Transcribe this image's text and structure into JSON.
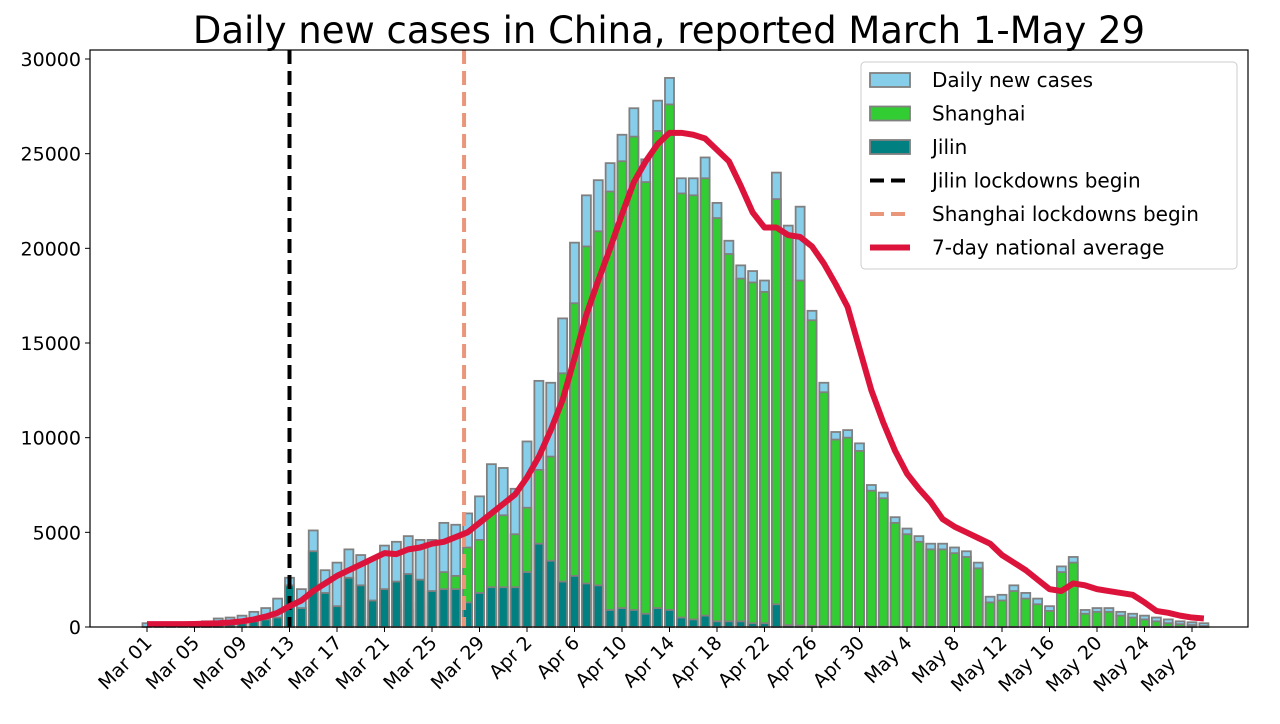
{
  "chart_data": {
    "type": "bar",
    "title": "Daily new cases in China, reported March 1-May 29",
    "xlabel": "",
    "ylabel": "",
    "ylim": [
      0,
      30000
    ],
    "yticks": [
      0,
      5000,
      10000,
      15000,
      20000,
      25000,
      30000
    ],
    "xtick_labels": [
      "Mar 01",
      "Mar 05",
      "Mar 09",
      "Mar 13",
      "Mar 17",
      "Mar 21",
      "Mar 25",
      "Mar 29",
      "Apr 2",
      "Apr 6",
      "Apr 10",
      "Apr 14",
      "Apr 18",
      "Apr 22",
      "Apr 26",
      "Apr 30",
      "May 4",
      "May 8",
      "May 12",
      "May 16",
      "May 20",
      "May 24",
      "May 28"
    ],
    "xtick_step_days": 4,
    "start_date": "Mar 01",
    "days": 90,
    "grid": false,
    "legend_position": "top-right",
    "series": [
      {
        "name": "Daily new cases",
        "kind": "bar",
        "color": "#87CEEB",
        "values": [
          200,
          200,
          200,
          200,
          250,
          300,
          450,
          500,
          600,
          800,
          1000,
          1500,
          2600,
          2000,
          5100,
          3000,
          3400,
          4100,
          3800,
          3600,
          4300,
          4500,
          4800,
          4600,
          4600,
          5500,
          5400,
          6000,
          6900,
          8600,
          8400,
          7300,
          9800,
          13000,
          12900,
          16300,
          20300,
          22800,
          23600,
          24500,
          26000,
          27400,
          24700,
          27800,
          29000,
          23700,
          23700,
          24800,
          22400,
          20400,
          19100,
          18800,
          18300,
          24000,
          21200,
          22200,
          16700,
          12900,
          10300,
          10400,
          9700,
          7500,
          7100,
          5800,
          5200,
          4800,
          4400,
          4400,
          4200,
          4000,
          3400,
          1600,
          1700,
          2200,
          1800,
          1500,
          1100,
          3200,
          3700,
          900,
          1000,
          1000,
          800,
          700,
          600,
          500,
          400,
          300,
          250,
          200
        ]
      },
      {
        "name": "Shanghai",
        "kind": "bar",
        "color": "#32CD32",
        "values": [
          0,
          0,
          0,
          0,
          0,
          0,
          0,
          0,
          0,
          0,
          0,
          0,
          50,
          100,
          100,
          300,
          200,
          250,
          400,
          100,
          900,
          1200,
          900,
          1300,
          1700,
          2900,
          2700,
          4200,
          4600,
          6000,
          5900,
          4900,
          6300,
          8300,
          9000,
          13400,
          17100,
          20100,
          20900,
          23000,
          24600,
          25900,
          23500,
          26200,
          27600,
          22900,
          22800,
          23700,
          21600,
          19700,
          18400,
          18200,
          17700,
          22600,
          20700,
          18300,
          16200,
          12400,
          9900,
          10000,
          9300,
          7200,
          6800,
          5500,
          4900,
          4500,
          4100,
          4100,
          3900,
          3700,
          3100,
          1300,
          1400,
          1900,
          1500,
          1200,
          850,
          2900,
          3400,
          700,
          800,
          800,
          600,
          500,
          400,
          300,
          200,
          150,
          100,
          50
        ]
      },
      {
        "name": "Jilin",
        "kind": "bar",
        "color": "#008080",
        "values": [
          0,
          0,
          0,
          0,
          50,
          50,
          100,
          150,
          200,
          300,
          400,
          500,
          2200,
          1000,
          4000,
          1800,
          1100,
          2600,
          2200,
          1400,
          2000,
          2400,
          2800,
          2500,
          1900,
          2000,
          2000,
          1300,
          1800,
          2100,
          2100,
          2100,
          2900,
          4400,
          3500,
          2400,
          2700,
          2300,
          2200,
          900,
          1000,
          900,
          700,
          1000,
          900,
          500,
          400,
          600,
          300,
          300,
          300,
          200,
          200,
          1200,
          100,
          80,
          60,
          50,
          40,
          30,
          30,
          20,
          20,
          20,
          10,
          10,
          10,
          10,
          10,
          10,
          10,
          10,
          10,
          10,
          10,
          10,
          10,
          10,
          10,
          10,
          10,
          10,
          10,
          10,
          10,
          10,
          10,
          10,
          10,
          10
        ]
      },
      {
        "name": "7-day national average",
        "kind": "line",
        "color": "#DC143C",
        "values": [
          150,
          150,
          150,
          150,
          160,
          180,
          200,
          240,
          300,
          400,
          550,
          750,
          1100,
          1400,
          1900,
          2300,
          2700,
          3000,
          3300,
          3600,
          3900,
          3850,
          4100,
          4200,
          4400,
          4500,
          4750,
          5000,
          5500,
          6000,
          6500,
          7000,
          7900,
          9000,
          10400,
          12000,
          14200,
          16500,
          18300,
          20000,
          21800,
          23500,
          24600,
          25500,
          26100,
          26100,
          26000,
          25800,
          25200,
          24600,
          23300,
          21900,
          21100,
          21100,
          20700,
          20600,
          20100,
          19200,
          18100,
          16900,
          14700,
          12500,
          10800,
          9300,
          8100,
          7300,
          6600,
          5700,
          5300,
          5000,
          4700,
          4400,
          3800,
          3400,
          3000,
          2500,
          2000,
          1900,
          2300,
          2200,
          2000,
          1900,
          1800,
          1700,
          1300,
          850,
          750,
          600,
          500,
          450
        ]
      }
    ],
    "vlines": [
      {
        "name": "Jilin lockdowns begin",
        "day_index": 12,
        "color": "#000000"
      },
      {
        "name": "Shanghai lockdowns begin",
        "day_index": 26.7,
        "color": "#E9967A"
      }
    ]
  }
}
